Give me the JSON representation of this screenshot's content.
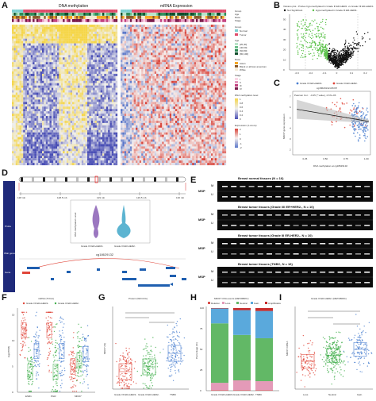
{
  "panels": {
    "A": {
      "letter": "A"
    },
    "B": {
      "letter": "B"
    },
    "C": {
      "letter": "C"
    },
    "D": {
      "letter": "D"
    },
    "E": {
      "letter": "E"
    },
    "F": {
      "letter": "F"
    },
    "G": {
      "letter": "G"
    },
    "H": {
      "letter": "H"
    },
    "I": {
      "letter": "I"
    }
  },
  "chart_data": [
    {
      "id": "A",
      "type": "heatmap",
      "titles": [
        "DNA methylation",
        "mRNA Expression"
      ],
      "legend": {
        "annotation_rows": [
          "Group",
          "Age",
          "Race",
          "Stage"
        ],
        "group_title": "Group",
        "group_items": [
          "Normal",
          "Tumor"
        ],
        "age_title": "Age",
        "age_items": [
          "[20,40]",
          "(40,60]",
          "(60,80]",
          "(80,100]"
        ],
        "race_title": "Race",
        "race_items": [
          "Asian",
          "Black or african american",
          "White"
        ],
        "stage_title": "Stage",
        "stage_items": [
          "I",
          "II",
          "III",
          "IV"
        ],
        "methylation_title": "DNA methylation level",
        "methylation_ticks": [
          "1",
          "0.8",
          "0.6",
          "0.4",
          "0.2",
          "0"
        ],
        "expression_title": "Expression (z-score)",
        "expression_ticks": [
          "2",
          "1",
          "0",
          "-1",
          "-2"
        ]
      },
      "colors": {
        "methylation_high": "#f5d64a",
        "methylation_low": "#4a4fb5",
        "expr_high": "#d8433a",
        "expr_low": "#5a77c9",
        "group_normal": "#7ccfd0",
        "group_tumor": "#e04a6a"
      }
    },
    {
      "id": "B",
      "type": "scatter",
      "title": "Volcano plot - Probes hypomethylated in Grade III ER-HER2- vs Grade I/II ER+HER2-",
      "legend": [
        "Not Significant",
        "Hypomethylated in Grade III ER-HER2-"
      ],
      "x_ticks": [
        "-0.3",
        "-0.2",
        "-0.1",
        "0",
        "0.1",
        "0.2"
      ],
      "y_ticks": [
        "0",
        "10",
        "20",
        "30",
        "40",
        "50"
      ],
      "colors": {
        "not_sig": "#111111",
        "hypo": "#5cc24a"
      }
    },
    {
      "id": "C",
      "type": "scatter",
      "legend": [
        "Grade I/II ER+HER2-",
        "Grade III ER-HER2-"
      ],
      "annotation": "Pearson Cor. : -0.25 (* value), 2.67e-06",
      "xlabel": "DNA methylation at cg18629132",
      "ylabel": "MKI67 gene expression",
      "x_ticks": [
        "0.25",
        "0.50",
        "0.75",
        "1.00"
      ],
      "y_ticks": [
        "2",
        "3",
        "4",
        "5",
        "6",
        "7"
      ],
      "probe_label": "cg18629132-MKI67",
      "regression": {
        "intercept": 6.0,
        "slope": -1.3
      },
      "colors": {
        "grade12": "#4a7fd0",
        "grade3": "#e0463a"
      }
    },
    {
      "id": "D",
      "type": "table",
      "side_labels": [
        "Probe",
        "IPair genes (cg18629132)",
        "Gene"
      ],
      "ideogram_ticks": [
        "128 mb",
        "128.5 mb",
        "129 mb",
        "129.5 mb",
        "130 mb"
      ],
      "probe_label": "cg18629132",
      "violin": {
        "groups": [
          "Grade I/II ER+HER2-",
          "Grade III ER-HER2-"
        ],
        "ylabel": "DNA methylation Level"
      }
    },
    {
      "id": "E",
      "type": "table",
      "gels": [
        {
          "title": "Breast normal tissues (N = 16)",
          "left": "MSP"
        },
        {
          "title": "Breast tumor tissues (Grade I/II ER+HER2-, N = 10)",
          "left": "MSP"
        },
        {
          "title": "Breast tumor tissues (Grade III ER-HER2-, N = 10)",
          "left": "MSP"
        },
        {
          "title": "Breast tumor tissues (TNBC, N = 16)",
          "left": "MSP"
        }
      ],
      "lane_marker": "Markers",
      "row_labels": [
        "M",
        "U"
      ]
    },
    {
      "id": "F",
      "type": "scatter",
      "title": "mRNA (TCGA)",
      "legend": [
        "Grade I/II ER+HER2-",
        "Grade III ER-HER2-"
      ],
      "categories": [
        "ESR1",
        "PGR",
        "MKI67"
      ],
      "ylabel": "log2(TPM)",
      "y_ticks": [
        "0",
        "5",
        "10",
        "15"
      ],
      "colors": {
        "grade12": "#e0463a",
        "grade3": "#3fae4a",
        "third": "#4a7fd0"
      }
    },
    {
      "id": "G",
      "type": "scatter",
      "title": "Protein (WCCCG)",
      "categories": [
        "Grade I/II ER+HER2-",
        "Grade III ER-HER2-",
        "TNBC"
      ],
      "ylabel": "MKI67 (%)",
      "colors": {
        "g1": "#e0463a",
        "g2": "#3fae4a",
        "g3": "#4a7fd0"
      }
    },
    {
      "id": "H",
      "type": "bar",
      "title": "MKI67 CNA events (METABRIC)",
      "categories": [
        "Grade I/II ER+HER2-",
        "Grade III ER-HER2-",
        "TNBC"
      ],
      "legend": [
        "Deletion",
        "Loss",
        "Neutral",
        "Gain",
        "Amplification"
      ],
      "ylabel": "Percentage (%)",
      "y_ticks": [
        "0",
        "25",
        "50",
        "75",
        "100"
      ],
      "series": [
        {
          "name": "Deletion",
          "values": [
            0.5,
            0.5,
            0.5
          ],
          "color": "#d9534f"
        },
        {
          "name": "Loss",
          "values": [
            9,
            12,
            11
          ],
          "color": "#e49ab8"
        },
        {
          "name": "Neutral",
          "values": [
            72,
            55,
            52
          ],
          "color": "#62b866"
        },
        {
          "name": "Gain",
          "values": [
            18,
            30,
            33
          ],
          "color": "#5aa9dc"
        },
        {
          "name": "Amplification",
          "values": [
            0.5,
            2.5,
            3.5
          ],
          "color": "#c72c2c"
        }
      ]
    },
    {
      "id": "I",
      "type": "scatter",
      "title": "Grade III ER-HER2- (METABRIC)",
      "categories": [
        "Loss",
        "Neutral",
        "Gain"
      ],
      "ylabel": "MKI67 mRNA",
      "colors": {
        "loss": "#e0463a",
        "neutral": "#3fae4a",
        "gain": "#4a7fd0"
      }
    }
  ]
}
